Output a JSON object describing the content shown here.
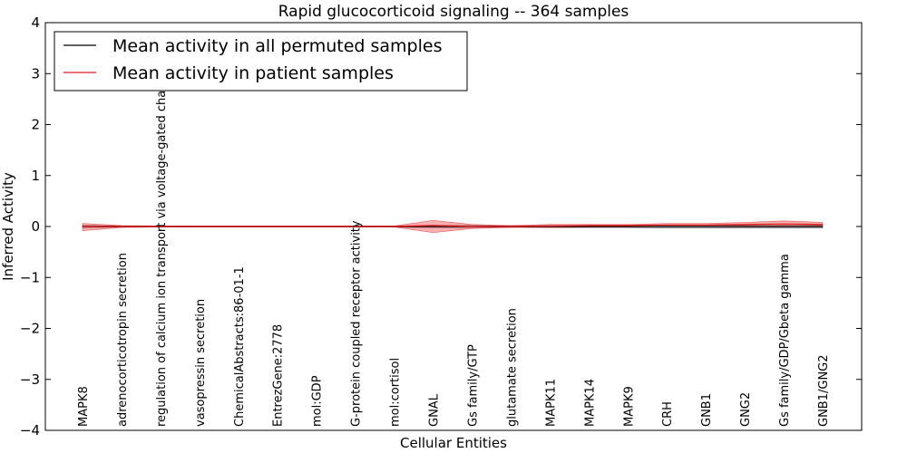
{
  "chart_data": {
    "type": "line",
    "title": "Rapid glucocorticoid signaling -- 364 samples",
    "xlabel": "Cellular Entities",
    "ylabel": "Inferred Activity",
    "ylim": [
      -4,
      4
    ],
    "yticks": [
      -4,
      -3,
      -2,
      -1,
      0,
      1,
      2,
      3,
      4
    ],
    "ytick_labels": [
      "−4",
      "−3",
      "−2",
      "−1",
      "0",
      "1",
      "2",
      "3",
      "4"
    ],
    "categories": [
      "MAPK8",
      "adrenocorticotropin secretion",
      "regulation of calcium ion transport via voltage-gated channel",
      "vasopressin secretion",
      "ChemicalAbstracts:86-01-1",
      "EntrezGene:2778",
      "mol:GDP",
      "G-protein coupled receptor activity",
      "mol:cortisol",
      "GNAL",
      "Gs family/GTP",
      "glutamate secretion",
      "MAPK11",
      "MAPK14",
      "MAPK9",
      "CRH",
      "GNB1",
      "GNG2",
      "Gs family/GDP/Gbeta gamma",
      "GNB1/GNG2"
    ],
    "legend_position": "top-left",
    "series": [
      {
        "name": "Mean activity in all permuted samples",
        "color": "#000000",
        "values": [
          0,
          0,
          0,
          0,
          0,
          0,
          0,
          0,
          0,
          0,
          0,
          0,
          0,
          0,
          0,
          0,
          0,
          0,
          0,
          0
        ],
        "band_upper": [
          0.02,
          0.01,
          0.01,
          0.01,
          0.01,
          0.01,
          0.01,
          0.01,
          0.01,
          0.02,
          0.02,
          0.01,
          0.02,
          0.02,
          0.02,
          0.02,
          0.02,
          0.02,
          0.02,
          0.02
        ],
        "band_lower": [
          -0.02,
          -0.01,
          -0.01,
          -0.01,
          -0.01,
          -0.01,
          -0.01,
          -0.01,
          -0.01,
          -0.02,
          -0.02,
          -0.01,
          -0.02,
          -0.02,
          -0.02,
          -0.03,
          -0.03,
          -0.03,
          -0.03,
          -0.03
        ]
      },
      {
        "name": "Mean activity in patient samples",
        "color": "#e31a1c",
        "values": [
          0,
          0,
          0,
          0,
          0,
          0,
          0,
          0,
          0,
          0.02,
          0,
          0,
          0.01,
          0.02,
          0.02,
          0.03,
          0.03,
          0.04,
          0.05,
          0.04
        ],
        "band_upper": [
          0.06,
          0.02,
          0.01,
          0.01,
          0.01,
          0.01,
          0.01,
          0.01,
          0.01,
          0.12,
          0.04,
          0.02,
          0.04,
          0.04,
          0.04,
          0.06,
          0.06,
          0.08,
          0.11,
          0.08
        ],
        "band_lower": [
          -0.08,
          -0.02,
          -0.01,
          -0.01,
          -0.01,
          -0.01,
          -0.01,
          -0.01,
          -0.01,
          -0.12,
          -0.04,
          -0.02,
          -0.02,
          -0.01,
          -0.01,
          0,
          0,
          0.01,
          0.01,
          0.01
        ]
      }
    ]
  }
}
